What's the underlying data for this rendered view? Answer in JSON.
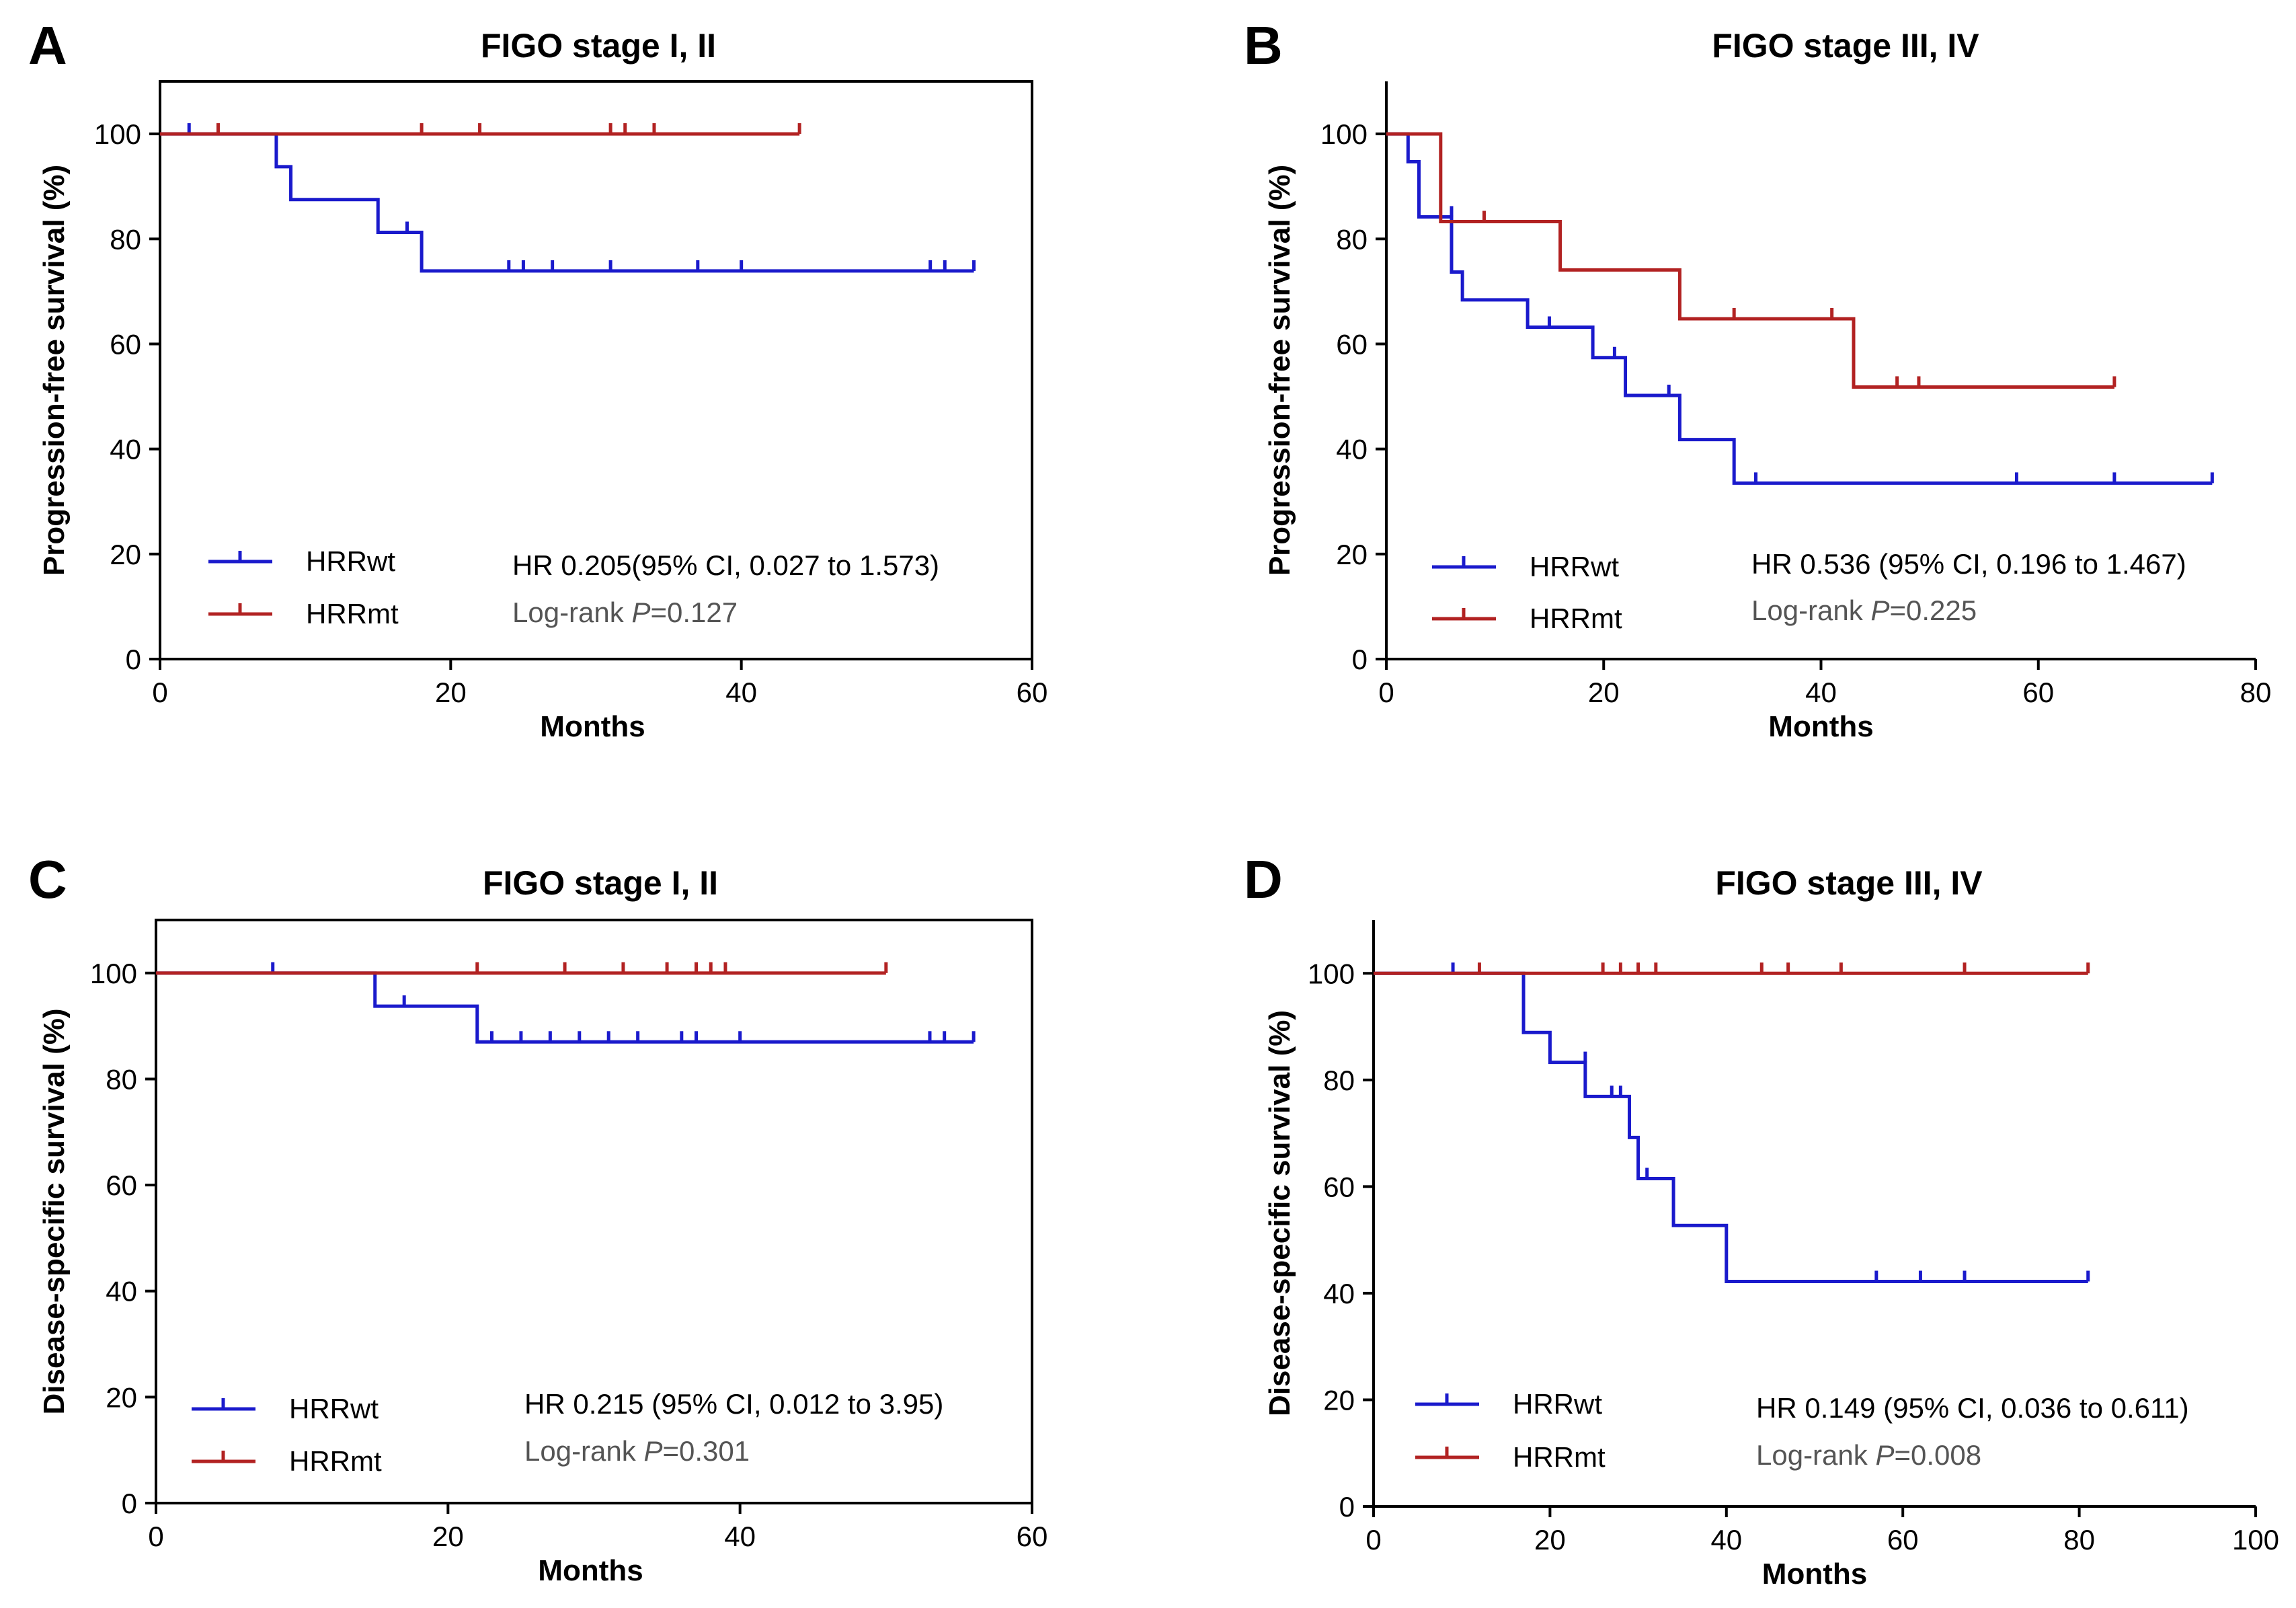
{
  "chart_data": [
    {
      "panel": "A",
      "type": "line",
      "title": "FIGO stage I, II",
      "xlabel": "Months",
      "ylabel": "Progression-free survival (%)",
      "xlim": [
        0,
        60
      ],
      "ylim": [
        0,
        110
      ],
      "xticks": [
        0,
        20,
        40,
        60
      ],
      "yticks": [
        0,
        20,
        40,
        60,
        80,
        100
      ],
      "series": [
        {
          "name": "HRRwt",
          "color": "#1a1acc",
          "steps": [
            [
              0,
              100
            ],
            [
              8,
              93.75
            ],
            [
              9,
              87.5
            ],
            [
              15,
              81.25
            ],
            [
              18,
              73.9
            ]
          ],
          "end": 56,
          "censors": [
            [
              2,
              100
            ],
            [
              17,
              81.25
            ],
            [
              24,
              73.9
            ],
            [
              25,
              73.9
            ],
            [
              27,
              73.9
            ],
            [
              31,
              73.9
            ],
            [
              37,
              73.9
            ],
            [
              40,
              73.9
            ],
            [
              53,
              73.9
            ],
            [
              54,
              73.9
            ],
            [
              56,
              73.9
            ]
          ]
        },
        {
          "name": "HRRmt",
          "color": "#b22222",
          "steps": [
            [
              0,
              100
            ]
          ],
          "end": 44,
          "censors": [
            [
              4,
              100
            ],
            [
              18,
              100
            ],
            [
              22,
              100
            ],
            [
              31,
              100
            ],
            [
              32,
              100
            ],
            [
              34,
              100
            ],
            [
              44,
              100
            ]
          ]
        }
      ],
      "annotation": {
        "hr": "HR 0.205(95% CI, 0.027 to 1.573)",
        "logrank_label": "Log-rank ",
        "p_symbol": "P",
        "p_value": "=0.127"
      }
    },
    {
      "panel": "B",
      "type": "line",
      "title": "FIGO stage III, IV",
      "xlabel": "Months",
      "ylabel": "Progression-free survival (%)",
      "xlim": [
        0,
        80
      ],
      "ylim": [
        0,
        110
      ],
      "xticks": [
        0,
        20,
        40,
        60,
        80
      ],
      "yticks": [
        0,
        20,
        40,
        60,
        80,
        100
      ],
      "series": [
        {
          "name": "HRRwt",
          "color": "#1a1acc",
          "steps": [
            [
              0,
              100
            ],
            [
              2,
              94.7
            ],
            [
              3,
              84.2
            ],
            [
              6,
              73.7
            ],
            [
              7,
              68.4
            ],
            [
              13,
              63.2
            ],
            [
              19,
              57.4
            ],
            [
              22,
              50.2
            ],
            [
              27,
              41.8
            ],
            [
              32,
              33.5
            ]
          ],
          "end": 76,
          "censors": [
            [
              6,
              84.2
            ],
            [
              15,
              63.2
            ],
            [
              21,
              57.4
            ],
            [
              26,
              50.2
            ],
            [
              34,
              33.5
            ],
            [
              58,
              33.5
            ],
            [
              67,
              33.5
            ],
            [
              76,
              33.5
            ]
          ]
        },
        {
          "name": "HRRmt",
          "color": "#b22222",
          "steps": [
            [
              0,
              100
            ],
            [
              5,
              83.3
            ],
            [
              16,
              74.1
            ],
            [
              27,
              64.8
            ],
            [
              43,
              51.8
            ]
          ],
          "end": 67,
          "censors": [
            [
              9,
              83.3
            ],
            [
              32,
              64.8
            ],
            [
              41,
              64.8
            ],
            [
              47,
              51.8
            ],
            [
              49,
              51.8
            ],
            [
              67,
              51.8
            ]
          ]
        }
      ],
      "annotation": {
        "hr": "HR 0.536 (95% CI, 0.196 to 1.467)",
        "logrank_label": "Log-rank ",
        "p_symbol": "P",
        "p_value": "=0.225"
      }
    },
    {
      "panel": "C",
      "type": "line",
      "title": "FIGO stage I, II",
      "xlabel": "Months",
      "ylabel": "Disease-specific survival (%)",
      "xlim": [
        0,
        60
      ],
      "ylim": [
        0,
        110
      ],
      "xticks": [
        0,
        20,
        40,
        60
      ],
      "yticks": [
        0,
        20,
        40,
        60,
        80,
        100
      ],
      "series": [
        {
          "name": "HRRwt",
          "color": "#1a1acc",
          "steps": [
            [
              0,
              100
            ],
            [
              15,
              93.75
            ],
            [
              22,
              87
            ]
          ],
          "end": 56,
          "censors": [
            [
              8,
              100
            ],
            [
              17,
              93.75
            ],
            [
              23,
              87
            ],
            [
              25,
              87
            ],
            [
              27,
              87
            ],
            [
              29,
              87
            ],
            [
              31,
              87
            ],
            [
              33,
              87
            ],
            [
              36,
              87
            ],
            [
              37,
              87
            ],
            [
              40,
              87
            ],
            [
              53,
              87
            ],
            [
              54,
              87
            ],
            [
              56,
              87
            ]
          ]
        },
        {
          "name": "HRRmt",
          "color": "#b22222",
          "steps": [
            [
              0,
              100
            ]
          ],
          "end": 50,
          "censors": [
            [
              22,
              100
            ],
            [
              28,
              100
            ],
            [
              32,
              100
            ],
            [
              35,
              100
            ],
            [
              37,
              100
            ],
            [
              38,
              100
            ],
            [
              39,
              100
            ],
            [
              50,
              100
            ]
          ]
        }
      ],
      "annotation": {
        "hr": "HR 0.215 (95% CI, 0.012 to 3.95)",
        "logrank_label": "Log-rank ",
        "p_symbol": "P",
        "p_value": "=0.301"
      }
    },
    {
      "panel": "D",
      "type": "line",
      "title": "FIGO stage III, IV",
      "xlabel": "Months",
      "ylabel": "Disease-specific survival (%)",
      "xlim": [
        0,
        100
      ],
      "ylim": [
        0,
        110
      ],
      "xticks": [
        0,
        20,
        40,
        60,
        80,
        100
      ],
      "yticks": [
        0,
        20,
        40,
        60,
        80,
        100
      ],
      "series": [
        {
          "name": "HRRwt",
          "color": "#1a1acc",
          "steps": [
            [
              0,
              100
            ],
            [
              17,
              88.9
            ],
            [
              20,
              83.3
            ],
            [
              24,
              76.9
            ],
            [
              29,
              69.2
            ],
            [
              30,
              61.5
            ],
            [
              34,
              52.7
            ],
            [
              40,
              42.2
            ]
          ],
          "end": 81,
          "censors": [
            [
              9,
              100
            ],
            [
              24,
              83.3
            ],
            [
              27,
              76.9
            ],
            [
              28,
              76.9
            ],
            [
              31,
              61.5
            ],
            [
              57,
              42.2
            ],
            [
              62,
              42.2
            ],
            [
              67,
              42.2
            ],
            [
              81,
              42.2
            ]
          ]
        },
        {
          "name": "HRRmt",
          "color": "#b22222",
          "steps": [
            [
              0,
              100
            ]
          ],
          "end": 81,
          "censors": [
            [
              12,
              100
            ],
            [
              26,
              100
            ],
            [
              28,
              100
            ],
            [
              30,
              100
            ],
            [
              32,
              100
            ],
            [
              44,
              100
            ],
            [
              47,
              100
            ],
            [
              53,
              100
            ],
            [
              67,
              100
            ],
            [
              81,
              100
            ]
          ]
        }
      ],
      "annotation": {
        "hr": "HR 0.149 (95% CI, 0.036 to 0.611)",
        "logrank_label": "Log-rank ",
        "p_symbol": "P",
        "p_value": "=0.008"
      }
    }
  ]
}
